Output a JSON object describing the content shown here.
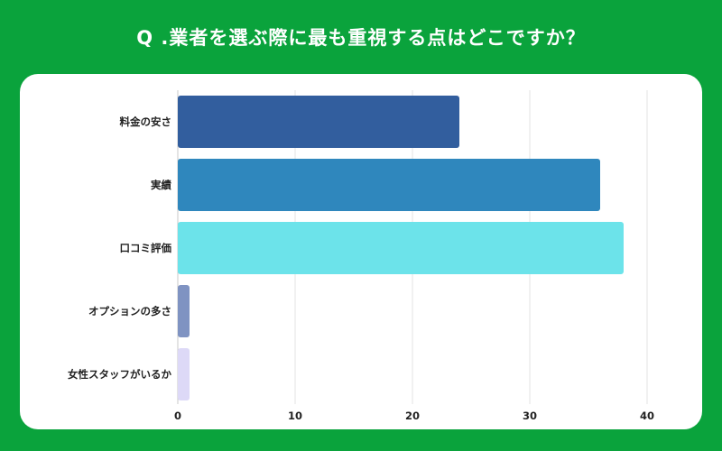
{
  "title": "Q .業者を選ぶ際に最も重視する点はどこですか？",
  "chart_data": {
    "type": "bar",
    "orientation": "horizontal",
    "categories": [
      "料金の安さ",
      "実績",
      "口コミ評価",
      "オプションの多さ",
      "女性スタッフがいるか"
    ],
    "values": [
      24,
      36,
      38,
      1,
      1
    ],
    "colors": [
      "#325e9e",
      "#2f87bd",
      "#6ce3ea",
      "#7f93c2",
      "#ddd9f7"
    ],
    "xlim": [
      0,
      40
    ],
    "xticks": [
      0,
      10,
      20,
      30,
      40
    ],
    "grid": true,
    "legend": "none"
  }
}
